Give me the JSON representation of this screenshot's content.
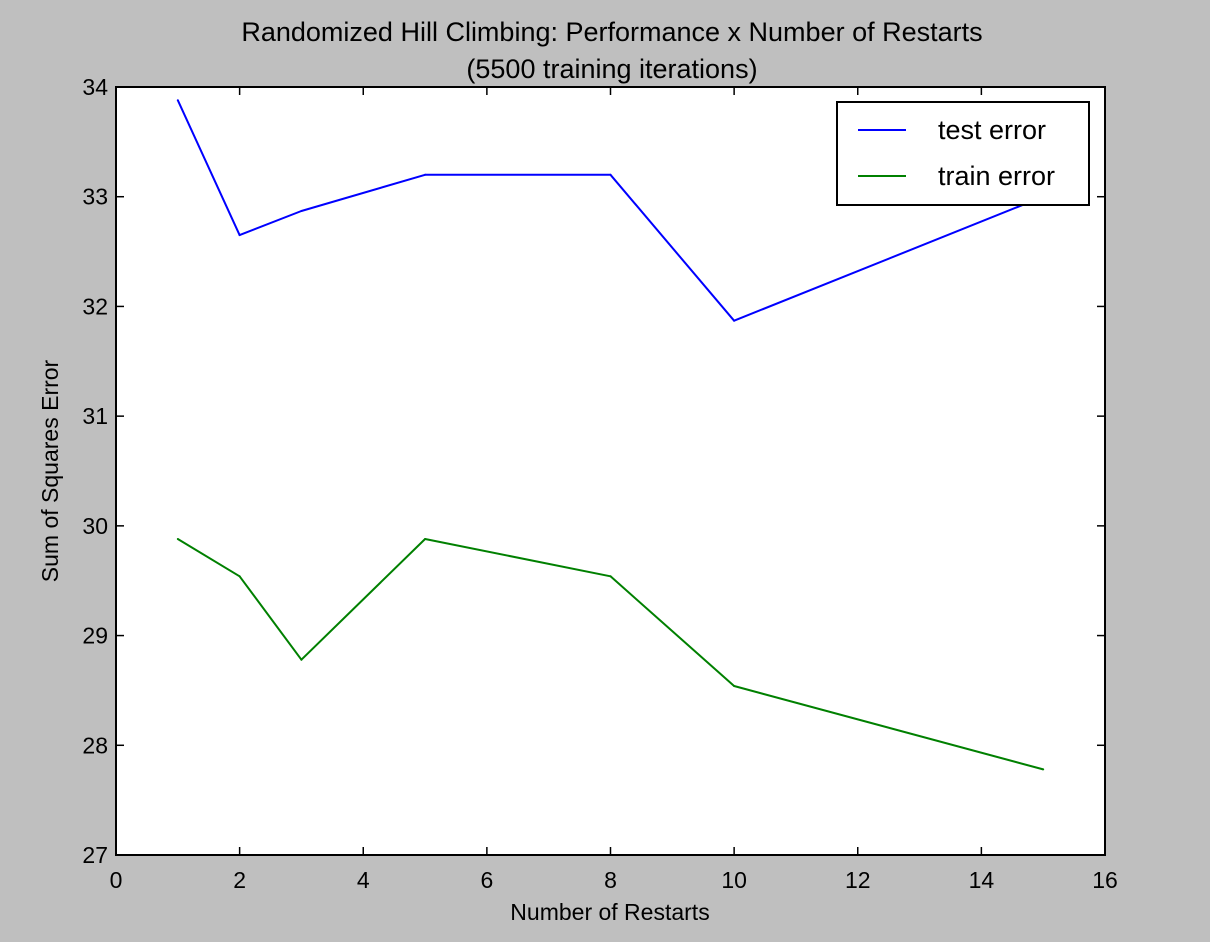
{
  "chart_data": {
    "type": "line",
    "title": "Randomized Hill Climbing: Performance x Number of Restarts",
    "subtitle": "(5500 training iterations)",
    "xlabel": "Number of Restarts",
    "ylabel": "Sum of Squares Error",
    "xlim": [
      0,
      16
    ],
    "ylim": [
      27,
      34
    ],
    "xticks": [
      0,
      2,
      4,
      6,
      8,
      10,
      12,
      14,
      16
    ],
    "yticks": [
      27,
      28,
      29,
      30,
      31,
      32,
      33,
      34
    ],
    "x": [
      1,
      2,
      3,
      5,
      8,
      10,
      15
    ],
    "series": [
      {
        "name": "test error",
        "color": "#0000ff",
        "values": [
          33.88,
          32.65,
          32.87,
          33.2,
          33.2,
          31.87,
          33.0
        ]
      },
      {
        "name": "train error",
        "color": "#008000",
        "values": [
          29.88,
          29.54,
          28.78,
          29.88,
          29.54,
          28.54,
          27.78
        ]
      }
    ],
    "grid": false,
    "legend": "top-right",
    "background": "#bfbfbf",
    "plot_background": "#ffffff"
  }
}
